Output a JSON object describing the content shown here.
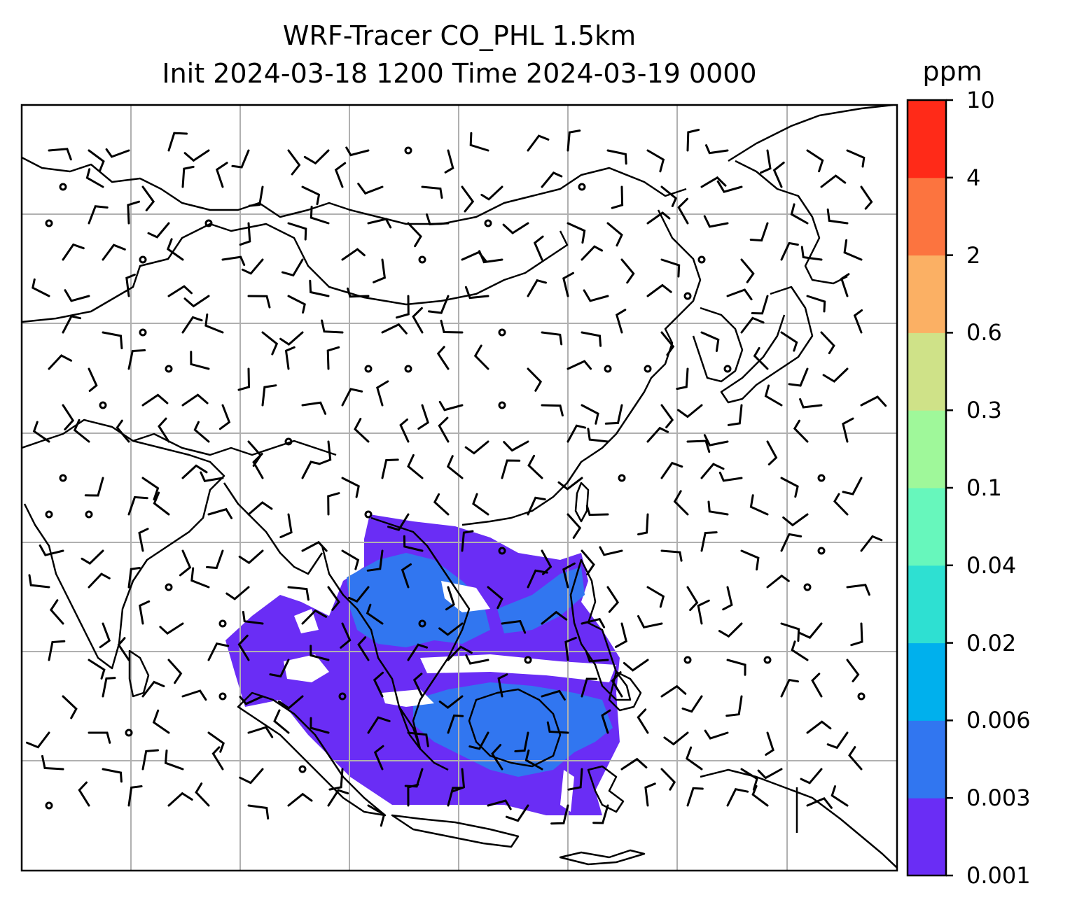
{
  "figure": {
    "title_line1": "WRF-Tracer CO_PHL 1.5km",
    "title_line2": "Init 2024-03-18 1200 Time 2024-03-19 0000"
  },
  "colorbar": {
    "unit": "ppm",
    "ticks": [
      "0.001",
      "0.003",
      "0.006",
      "0.02",
      "0.04",
      "0.1",
      "0.3",
      "0.6",
      "2",
      "4",
      "10"
    ],
    "colors": [
      "#6a2df5",
      "#3176f0",
      "#00b0ed",
      "#2ee0d2",
      "#67f7bc",
      "#9ff89a",
      "#cfe288",
      "#fbb064",
      "#fc743f",
      "#ff2a18"
    ]
  },
  "map": {
    "field_color": "#6a2df5",
    "field_color_inner": "#3176f0",
    "field_color_peak": "#00b0ed",
    "gridline_color": "#b0b0b0",
    "coastline_color": "#000000"
  }
}
